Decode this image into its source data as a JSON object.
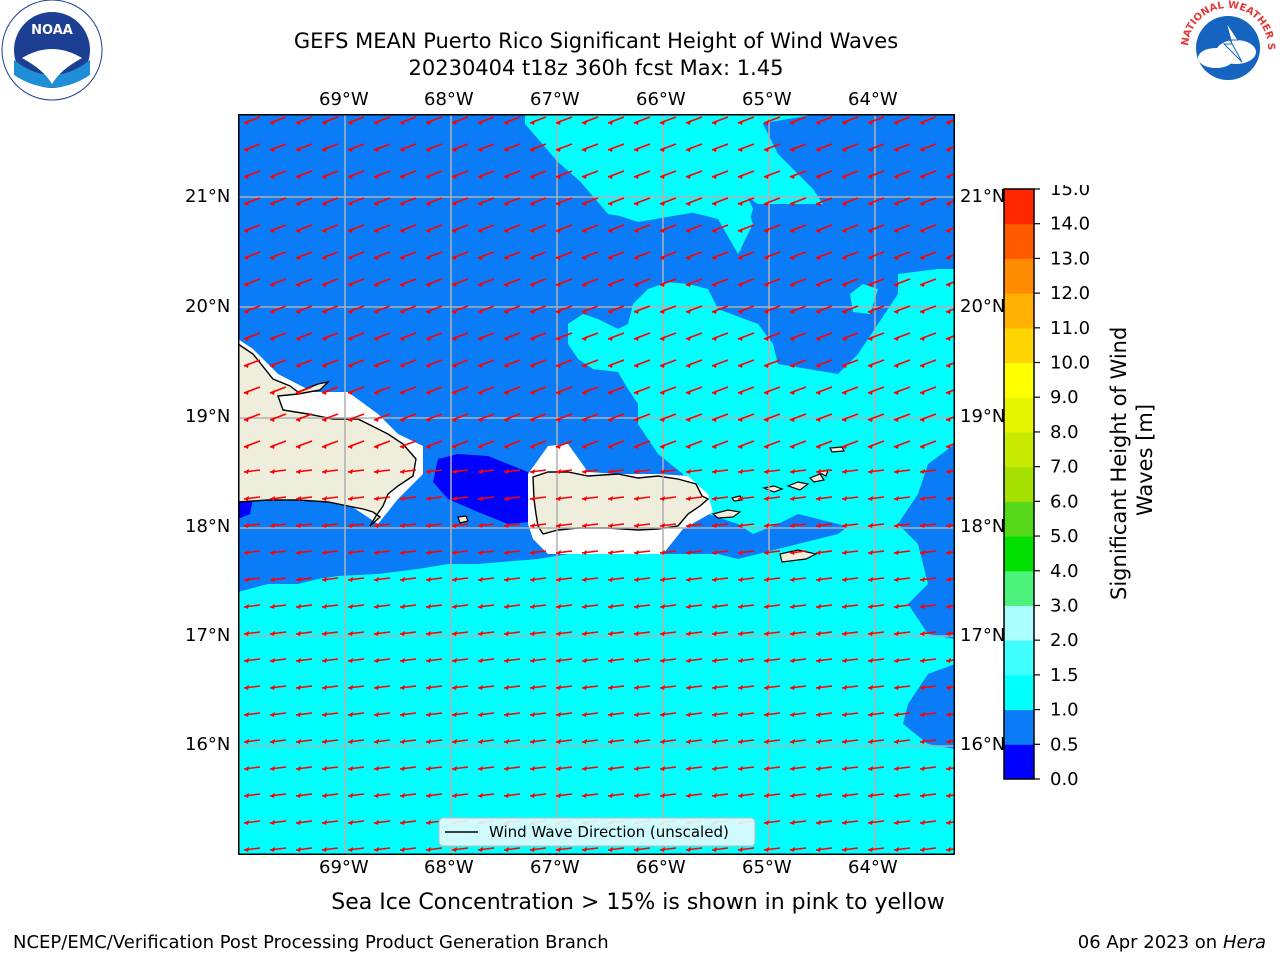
{
  "title_line1": "GEFS MEAN Puerto Rico Significant Height of Wind Waves",
  "title_line2": "20230404 t18z 360h fcst   Max: 1.45",
  "lon_labels": [
    "69°W",
    "68°W",
    "67°W",
    "66°W",
    "65°W",
    "64°W"
  ],
  "lat_labels": [
    "21°N",
    "20°N",
    "19°N",
    "18°N",
    "17°N",
    "16°N"
  ],
  "legend_label": "Wind Wave Direction (unscaled)",
  "colorbar": {
    "label": "Significant Height of Wind Waves [m]",
    "ticks": [
      "0.0",
      "0.5",
      "1.0",
      "1.5",
      "2.0",
      "3.0",
      "4.0",
      "5.0",
      "6.0",
      "7.0",
      "8.0",
      "9.0",
      "10.0",
      "11.0",
      "12.0",
      "13.0",
      "14.0",
      "15.0"
    ],
    "colors": [
      "#0000ff",
      "#0a7cf7",
      "#00ffff",
      "#40ffff",
      "#aaffff",
      "#4cf27c",
      "#00e000",
      "#55d81a",
      "#a6e000",
      "#c8ea00",
      "#e8f500",
      "#ffff00",
      "#ffd400",
      "#ffb000",
      "#ff8c00",
      "#ff5a00",
      "#ff2600"
    ]
  },
  "sea_ice_note": "Sea Ice Concentration > 15% is shown in pink to yellow",
  "footer_left": "NCEP/EMC/Verification Post Processing Product Generation Branch",
  "footer_date": "06 Apr 2023 on ",
  "footer_machine": "Hera",
  "logos": {
    "left": "NOAA",
    "right": "NATIONAL WEATHER SERVICE"
  },
  "colors": {
    "arrow": "#ff0000",
    "land": "#efeddc",
    "grid": "#b0b0b0"
  }
}
